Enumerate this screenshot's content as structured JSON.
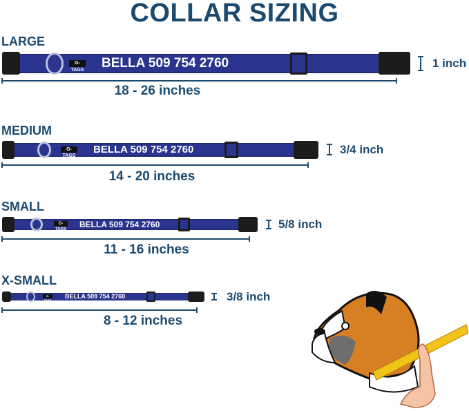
{
  "title": "COLLAR SIZING",
  "brand_tag": "G-TAGS",
  "sizes": [
    {
      "name": "LARGE",
      "collar_text": "BELLA 509 754 2760",
      "length": "18 - 26 inches",
      "width": "1 inch"
    },
    {
      "name": "MEDIUM",
      "collar_text": "BELLA 509 754 2760",
      "length": "14 - 20 inches",
      "width": "3/4 inch"
    },
    {
      "name": "SMALL",
      "collar_text": "BELLA 509 754 2760",
      "length": "11 - 16 inches",
      "width": "5/8 inch"
    },
    {
      "name": "X-SMALL",
      "collar_text": "BELLA 509 754 2760",
      "length": "8 - 12 inches",
      "width": "3/8 inch"
    }
  ],
  "colors": {
    "heading": "#1b4a70",
    "collar": "#2b3590",
    "buckle": "#1c1c1c"
  },
  "illustration": "boxer-dog-neck-measuring-icon"
}
